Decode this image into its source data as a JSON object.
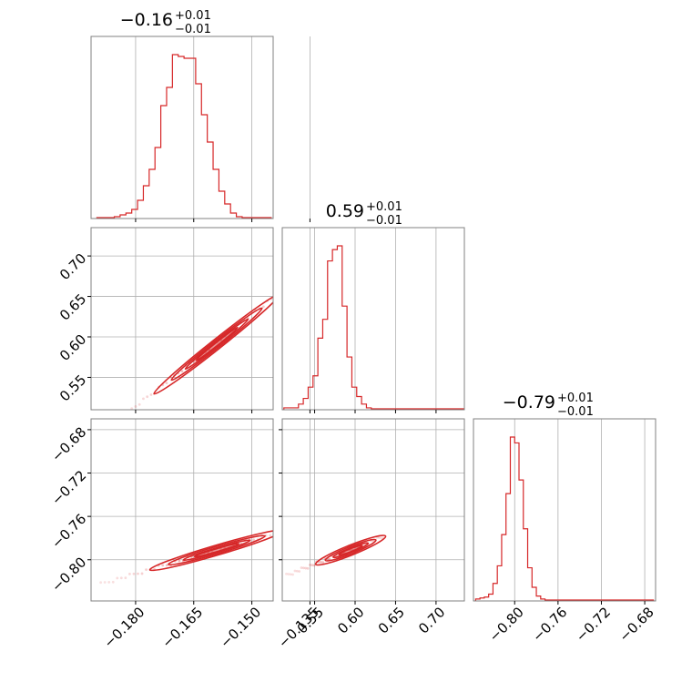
{
  "chart_data": {
    "type": "corner",
    "color": "#d62728",
    "params": [
      {
        "title": {
          "median": "−0.16",
          "plus": "+0.01",
          "minus": "−0.01"
        },
        "range": [
          -0.1915,
          -0.1445
        ],
        "ticks": [
          -0.18,
          -0.165,
          -0.15,
          -0.135
        ],
        "tick_labels": [
          "−0.180",
          "−0.165",
          "−0.150",
          "−0.135"
        ],
        "histogram": {
          "bins": [
            -0.19,
            -0.1885,
            -0.187,
            -0.1855,
            -0.184,
            -0.1825,
            -0.181,
            -0.1795,
            -0.178,
            -0.1765,
            -0.175,
            -0.1735,
            -0.172,
            -0.1705,
            -0.169,
            -0.1675,
            -0.166,
            -0.1645,
            -0.163,
            -0.1615,
            -0.16,
            -0.1585,
            -0.157,
            -0.1555,
            -0.154,
            -0.1525,
            -0.151,
            -0.1495,
            -0.148,
            -0.1465,
            -0.145
          ],
          "counts": [
            0.005,
            0.005,
            0.005,
            0.01,
            0.02,
            0.03,
            0.05,
            0.1,
            0.18,
            0.27,
            0.39,
            0.62,
            0.72,
            0.9,
            0.89,
            0.88,
            0.88,
            0.74,
            0.57,
            0.42,
            0.27,
            0.15,
            0.08,
            0.03,
            0.01,
            0.005,
            0.005,
            0.005,
            0.005,
            0.005
          ]
        }
      },
      {
        "title": {
          "median": "0.59",
          "plus": "+0.01",
          "minus": "−0.01"
        },
        "range": [
          0.51,
          0.735
        ],
        "ticks": [
          0.55,
          0.6,
          0.65,
          0.7
        ],
        "tick_labels": [
          "0.55",
          "0.60",
          "0.65",
          "0.70"
        ],
        "histogram": {
          "bins": [
            0.512,
            0.518,
            0.524,
            0.53,
            0.536,
            0.542,
            0.548,
            0.554,
            0.56,
            0.566,
            0.572,
            0.578,
            0.584,
            0.59,
            0.596,
            0.602,
            0.608,
            0.614,
            0.62,
            0.626,
            0.632,
            0.638,
            0.644,
            0.65,
            0.656,
            0.662,
            0.668,
            0.674,
            0.68,
            0.686,
            0.692,
            0.698,
            0.704,
            0.71,
            0.716,
            0.722,
            0.728,
            0.734
          ],
          "counts": [
            0.01,
            0.01,
            0.01,
            0.03,
            0.06,
            0.12,
            0.18,
            0.38,
            0.48,
            0.79,
            0.85,
            0.87,
            0.55,
            0.28,
            0.12,
            0.07,
            0.03,
            0.01,
            0.005,
            0.005,
            0.005,
            0.005,
            0.005,
            0.005,
            0.005,
            0.005,
            0.005,
            0.005,
            0.005,
            0.005,
            0.005,
            0.005,
            0.005,
            0.005,
            0.005,
            0.005,
            0.005
          ]
        }
      },
      {
        "title": {
          "median": "−0.79",
          "plus": "+0.01",
          "minus": "−0.01"
        },
        "range": [
          -0.838,
          -0.67
        ],
        "ticks": [
          -0.8,
          -0.76,
          -0.72,
          -0.68
        ],
        "tick_labels": [
          "−0.80",
          "−0.76",
          "−0.72",
          "−0.68"
        ],
        "histogram": {
          "bins": [
            -0.836,
            -0.832,
            -0.828,
            -0.824,
            -0.82,
            -0.816,
            -0.812,
            -0.808,
            -0.804,
            -0.8,
            -0.796,
            -0.792,
            -0.788,
            -0.784,
            -0.78,
            -0.776,
            -0.772,
            -0.768,
            -0.764,
            -0.76,
            -0.756,
            -0.752,
            -0.748,
            -0.744,
            -0.74,
            -0.736,
            -0.732,
            -0.728,
            -0.724,
            -0.72,
            -0.716,
            -0.712,
            -0.708,
            -0.704,
            -0.7,
            -0.696,
            -0.692,
            -0.688,
            -0.684,
            -0.68,
            -0.676,
            -0.672
          ],
          "counts": [
            0.01,
            0.015,
            0.02,
            0.035,
            0.09,
            0.18,
            0.34,
            0.55,
            0.84,
            0.81,
            0.62,
            0.37,
            0.17,
            0.07,
            0.025,
            0.01,
            0.005,
            0.005,
            0.005,
            0.005,
            0.005,
            0.005,
            0.005,
            0.005,
            0.005,
            0.005,
            0.005,
            0.005,
            0.005,
            0.005,
            0.005,
            0.005,
            0.005,
            0.005,
            0.005,
            0.005,
            0.005,
            0.005,
            0.005,
            0.005,
            0.005
          ]
        }
      }
    ],
    "correlations": [
      {
        "x": 0,
        "y": 1,
        "center": [
          -0.16,
          0.59
        ],
        "slope": 3.8,
        "spread": [
          -0.185,
          -0.14
        ]
      },
      {
        "x": 0,
        "y": 2,
        "center": [
          -0.16,
          -0.792
        ],
        "slope": 1.05,
        "spread": [
          -0.189,
          -0.141
        ]
      },
      {
        "x": 1,
        "y": 2,
        "center": [
          0.59,
          -0.792
        ],
        "slope": 0.3,
        "spread": [
          0.515,
          0.635
        ]
      }
    ],
    "grid": true
  }
}
